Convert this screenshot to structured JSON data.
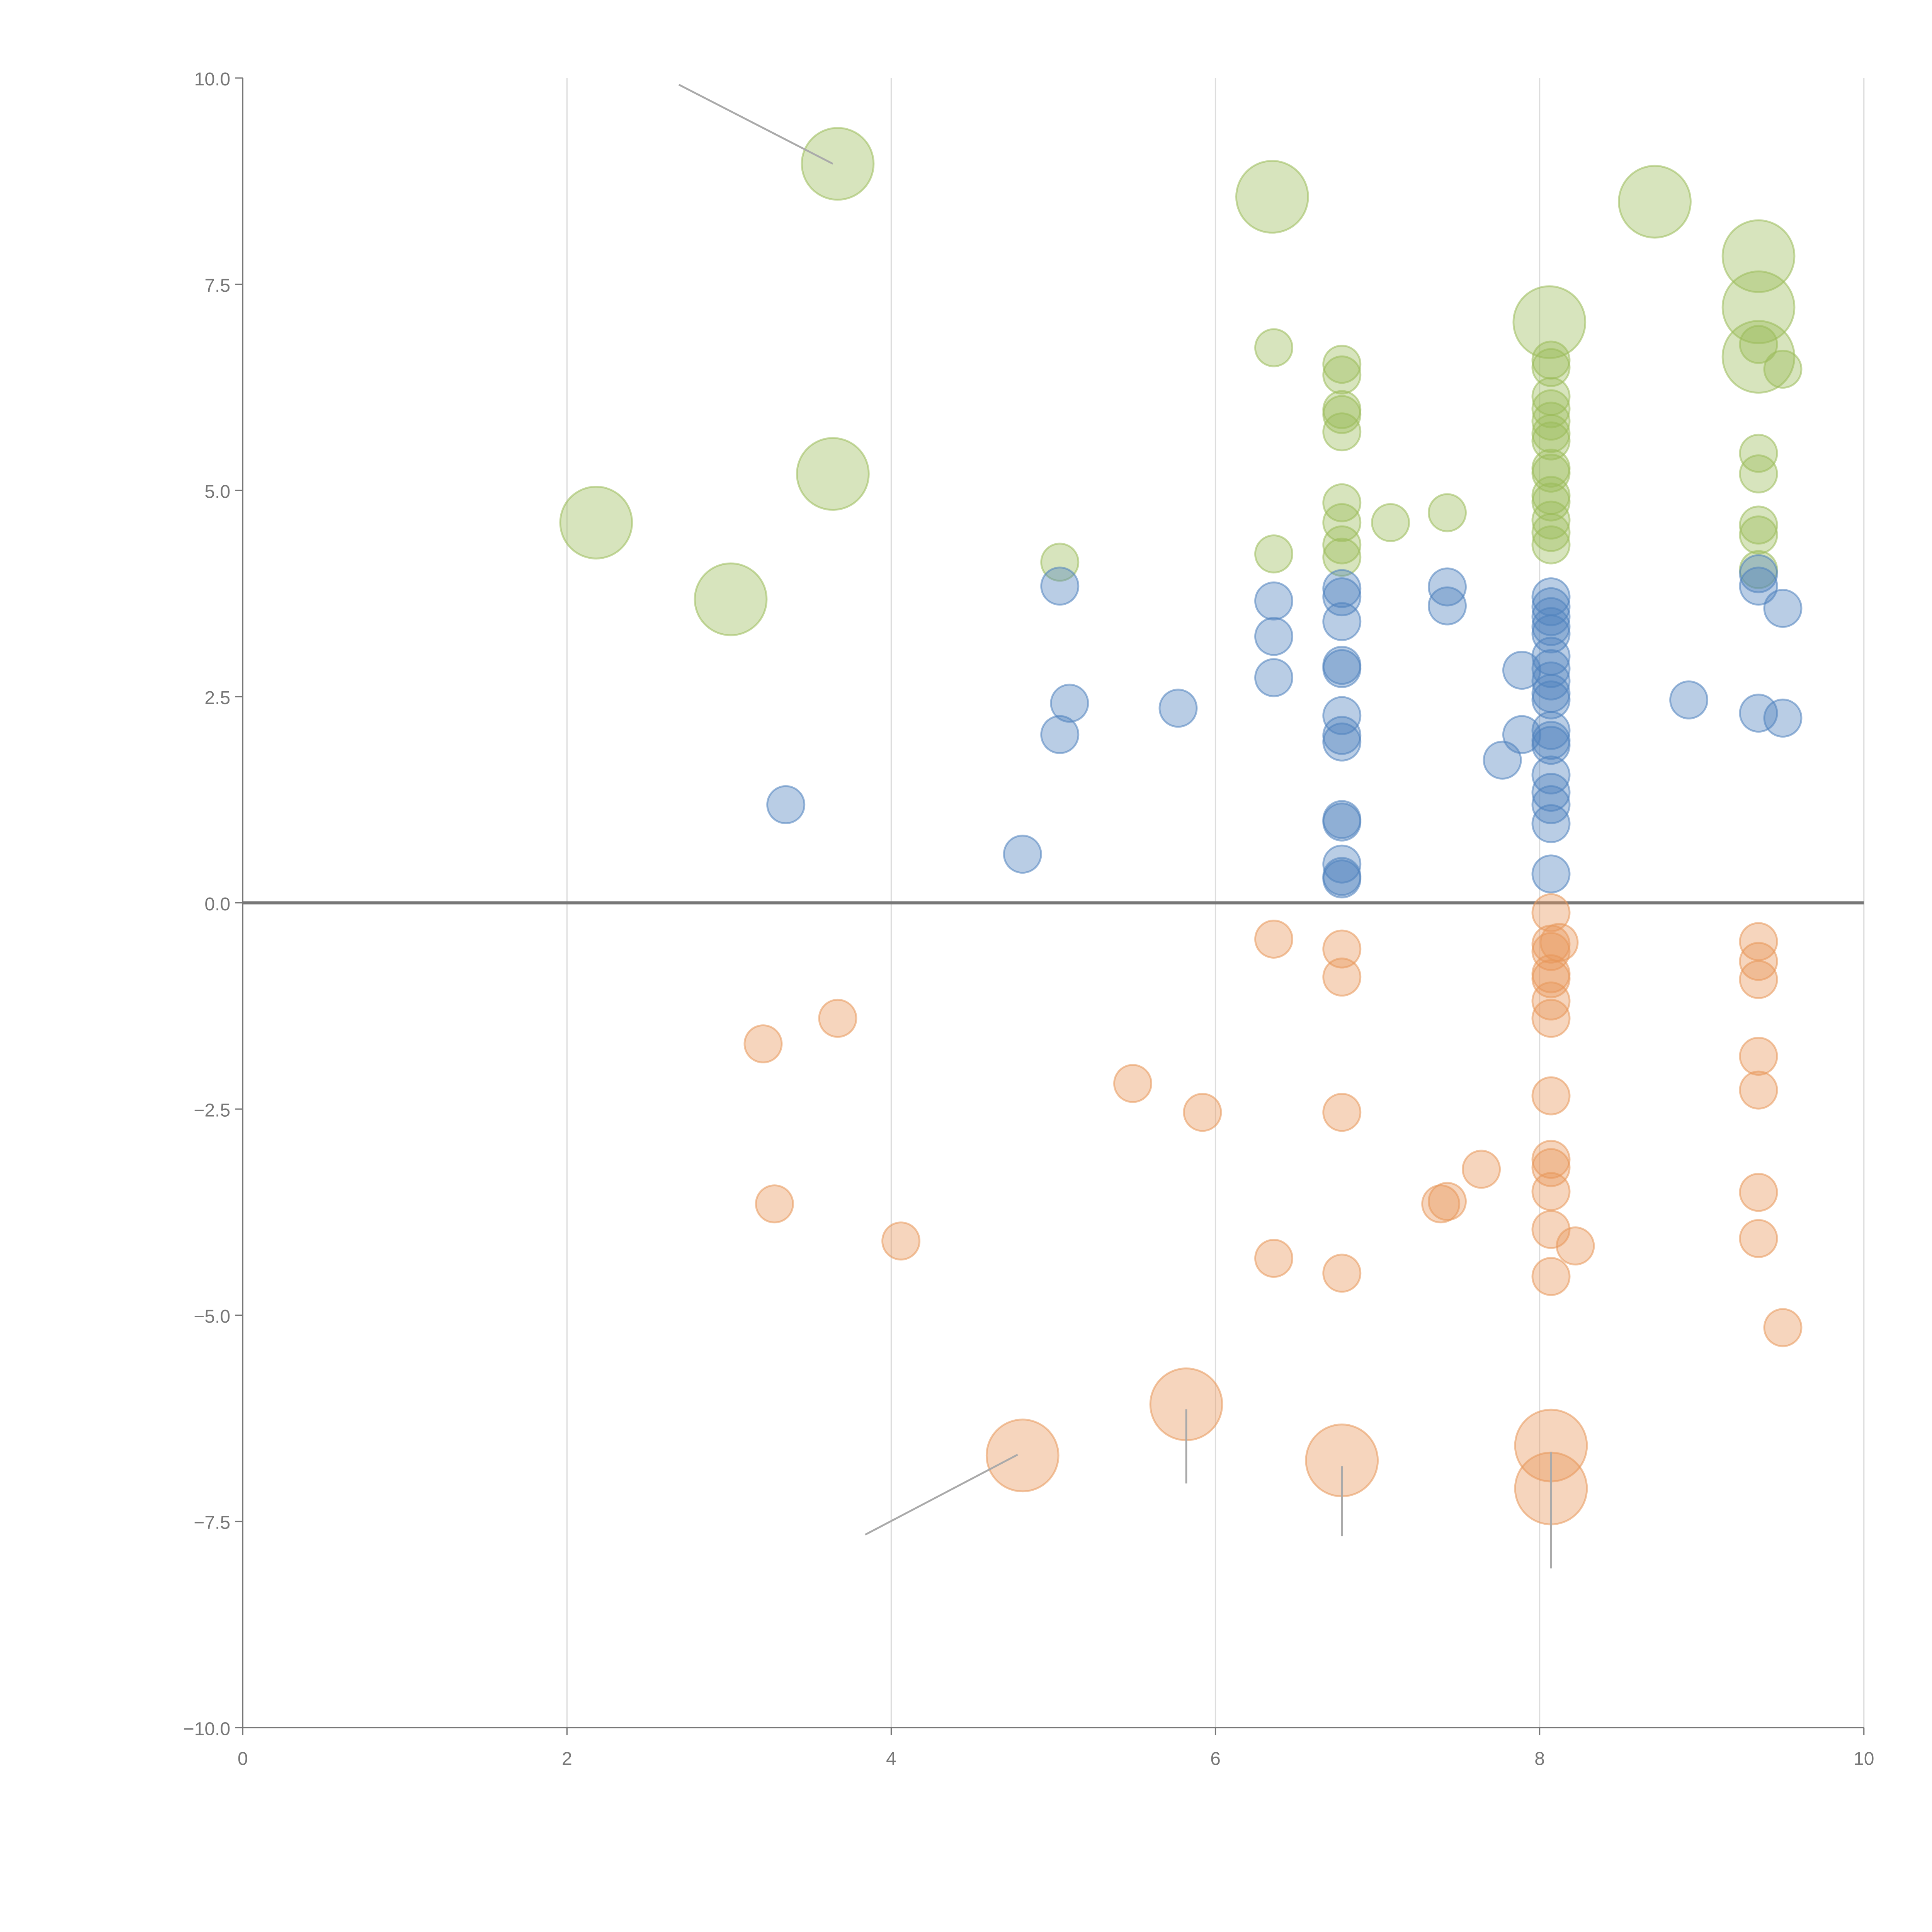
{
  "chart_data": {
    "type": "scatter",
    "title": "",
    "xlabel": "",
    "ylabel": "",
    "xlim": [
      0,
      10
    ],
    "ylim": [
      -10,
      10
    ],
    "xticks": [
      0,
      2,
      4,
      6,
      8,
      10
    ],
    "xtick_labels": [
      "0",
      "2",
      "4",
      "6",
      "8",
      "10"
    ],
    "yticks": [
      10,
      7.5,
      5,
      2.5,
      0,
      -2.5,
      -5,
      -7.5,
      -10
    ],
    "ytick_labels": [
      "10.0",
      "7.5",
      "5.0",
      "2.5",
      "0.0",
      "−2.5",
      "−5.0",
      "−7.5",
      "−10.0"
    ],
    "grid": "vertical",
    "legend": "none",
    "point_format": "[x, y, size]",
    "series": [
      {
        "name": "green",
        "color": "#9bbb59",
        "points": [
          [
            3.67,
            8.96,
            4
          ],
          [
            6.35,
            8.56,
            4
          ],
          [
            8.71,
            8.5,
            4
          ],
          [
            9.35,
            7.84,
            4
          ],
          [
            8.06,
            7.04,
            4
          ],
          [
            9.35,
            7.22,
            4
          ],
          [
            9.35,
            6.62,
            4
          ],
          [
            3.64,
            5.2,
            4
          ],
          [
            2.18,
            4.61,
            4
          ],
          [
            3.01,
            3.68,
            4
          ],
          [
            6.36,
            6.73,
            1
          ],
          [
            6.78,
            6.53,
            1
          ],
          [
            6.78,
            6.4,
            1
          ],
          [
            6.78,
            5.98,
            1
          ],
          [
            6.78,
            5.92,
            1
          ],
          [
            6.78,
            5.71,
            1
          ],
          [
            6.78,
            4.85,
            1
          ],
          [
            6.78,
            4.61,
            1
          ],
          [
            6.78,
            4.34,
            1
          ],
          [
            6.78,
            4.19,
            1
          ],
          [
            7.08,
            4.61,
            1
          ],
          [
            7.43,
            4.73,
            1
          ],
          [
            6.36,
            4.23,
            1
          ],
          [
            5.04,
            4.13,
            1
          ],
          [
            8.07,
            6.58,
            1
          ],
          [
            8.07,
            6.49,
            1
          ],
          [
            8.07,
            6.14,
            1
          ],
          [
            8.07,
            5.99,
            1
          ],
          [
            8.07,
            5.84,
            1
          ],
          [
            8.07,
            5.69,
            1
          ],
          [
            8.07,
            5.6,
            1
          ],
          [
            8.07,
            5.27,
            1
          ],
          [
            8.07,
            5.21,
            1
          ],
          [
            8.07,
            4.94,
            1
          ],
          [
            8.07,
            4.86,
            1
          ],
          [
            8.07,
            4.64,
            1
          ],
          [
            8.07,
            4.49,
            1
          ],
          [
            8.07,
            4.34,
            1
          ],
          [
            9.35,
            6.77,
            1
          ],
          [
            9.5,
            6.47,
            1
          ],
          [
            9.35,
            5.45,
            1
          ],
          [
            9.35,
            5.2,
            1
          ],
          [
            9.35,
            4.58,
            1
          ],
          [
            9.35,
            4.46,
            1
          ],
          [
            9.35,
            4.04,
            1
          ]
        ]
      },
      {
        "name": "blue",
        "color": "#4f81bd",
        "points": [
          [
            3.35,
            1.19,
            1
          ],
          [
            4.81,
            0.59,
            1
          ],
          [
            5.04,
            3.84,
            1
          ],
          [
            5.1,
            2.42,
            1
          ],
          [
            5.04,
            2.04,
            1
          ],
          [
            5.77,
            2.36,
            1
          ],
          [
            6.36,
            3.66,
            1
          ],
          [
            6.36,
            3.23,
            1
          ],
          [
            6.36,
            2.73,
            1
          ],
          [
            6.78,
            3.81,
            1
          ],
          [
            6.78,
            3.71,
            1
          ],
          [
            6.78,
            3.41,
            1
          ],
          [
            6.78,
            2.88,
            1
          ],
          [
            6.78,
            2.84,
            1
          ],
          [
            6.78,
            2.27,
            1
          ],
          [
            6.78,
            2.03,
            1
          ],
          [
            6.78,
            1.95,
            1
          ],
          [
            6.78,
            1.01,
            1
          ],
          [
            6.78,
            0.98,
            1
          ],
          [
            6.78,
            0.47,
            1
          ],
          [
            6.78,
            0.32,
            1
          ],
          [
            6.78,
            0.29,
            1
          ],
          [
            7.43,
            3.83,
            1
          ],
          [
            7.43,
            3.6,
            1
          ],
          [
            7.89,
            2.82,
            1
          ],
          [
            7.89,
            2.04,
            1
          ],
          [
            7.77,
            1.73,
            1
          ],
          [
            8.07,
            3.71,
            1
          ],
          [
            8.07,
            3.59,
            1
          ],
          [
            8.07,
            3.47,
            1
          ],
          [
            8.07,
            3.35,
            1
          ],
          [
            8.07,
            3.26,
            1
          ],
          [
            8.07,
            2.99,
            1
          ],
          [
            8.07,
            2.84,
            1
          ],
          [
            8.07,
            2.69,
            1
          ],
          [
            8.07,
            2.54,
            1
          ],
          [
            8.07,
            2.46,
            1
          ],
          [
            8.07,
            2.09,
            1
          ],
          [
            8.07,
            1.97,
            1
          ],
          [
            8.07,
            1.91,
            1
          ],
          [
            8.07,
            1.55,
            1
          ],
          [
            8.07,
            1.34,
            1
          ],
          [
            8.07,
            1.19,
            1
          ],
          [
            8.07,
            0.96,
            1
          ],
          [
            8.07,
            0.35,
            1
          ],
          [
            8.92,
            2.46,
            1
          ],
          [
            9.35,
            3.99,
            1
          ],
          [
            9.35,
            3.84,
            1
          ],
          [
            9.5,
            3.57,
            1
          ],
          [
            9.35,
            2.3,
            1
          ],
          [
            9.5,
            2.24,
            1
          ]
        ]
      },
      {
        "name": "orange",
        "color": "#e8975a",
        "points": [
          [
            6.36,
            -0.44,
            1
          ],
          [
            6.78,
            -0.56,
            1
          ],
          [
            6.78,
            -0.9,
            1
          ],
          [
            6.78,
            -2.54,
            1
          ],
          [
            6.78,
            -4.49,
            1
          ],
          [
            6.36,
            -4.31,
            1
          ],
          [
            3.67,
            -1.4,
            1
          ],
          [
            3.21,
            -1.71,
            1
          ],
          [
            3.28,
            -3.65,
            1
          ],
          [
            4.06,
            -4.1,
            1
          ],
          [
            5.49,
            -2.19,
            1
          ],
          [
            5.92,
            -2.54,
            1
          ],
          [
            7.39,
            -3.65,
            1
          ],
          [
            7.43,
            -3.62,
            1
          ],
          [
            7.64,
            -3.23,
            1
          ],
          [
            8.07,
            -0.12,
            1
          ],
          [
            8.07,
            -0.5,
            1
          ],
          [
            8.07,
            -0.59,
            1
          ],
          [
            8.07,
            -0.86,
            1
          ],
          [
            8.07,
            -0.92,
            1
          ],
          [
            8.07,
            -1.19,
            1
          ],
          [
            8.07,
            -1.4,
            1
          ],
          [
            8.07,
            -2.34,
            1
          ],
          [
            8.07,
            -3.11,
            1
          ],
          [
            8.07,
            -3.21,
            1
          ],
          [
            8.07,
            -3.5,
            1
          ],
          [
            8.07,
            -3.96,
            1
          ],
          [
            8.07,
            -4.53,
            1
          ],
          [
            8.12,
            -0.48,
            1
          ],
          [
            8.22,
            -4.16,
            1
          ],
          [
            9.35,
            -0.47,
            1
          ],
          [
            9.35,
            -0.71,
            1
          ],
          [
            9.35,
            -0.93,
            1
          ],
          [
            9.35,
            -1.86,
            1
          ],
          [
            9.35,
            -2.27,
            1
          ],
          [
            9.35,
            -3.51,
            1
          ],
          [
            9.35,
            -4.07,
            1
          ],
          [
            9.5,
            -5.15,
            1
          ],
          [
            4.81,
            -6.7,
            4
          ],
          [
            5.82,
            -6.08,
            4
          ],
          [
            6.78,
            -6.76,
            4
          ],
          [
            8.07,
            -6.58,
            4
          ],
          [
            8.07,
            -7.1,
            4
          ]
        ]
      }
    ],
    "leader_lines": [
      [
        [
          3.64,
          8.96
        ],
        [
          2.69,
          9.92
        ]
      ],
      [
        [
          4.78,
          -6.69
        ],
        [
          3.84,
          -7.66
        ]
      ],
      [
        [
          5.82,
          -6.14
        ],
        [
          5.82,
          -7.04
        ]
      ],
      [
        [
          6.78,
          -6.83
        ],
        [
          6.78,
          -7.68
        ]
      ],
      [
        [
          8.07,
          -6.66
        ],
        [
          8.07,
          -8.07
        ]
      ]
    ]
  }
}
